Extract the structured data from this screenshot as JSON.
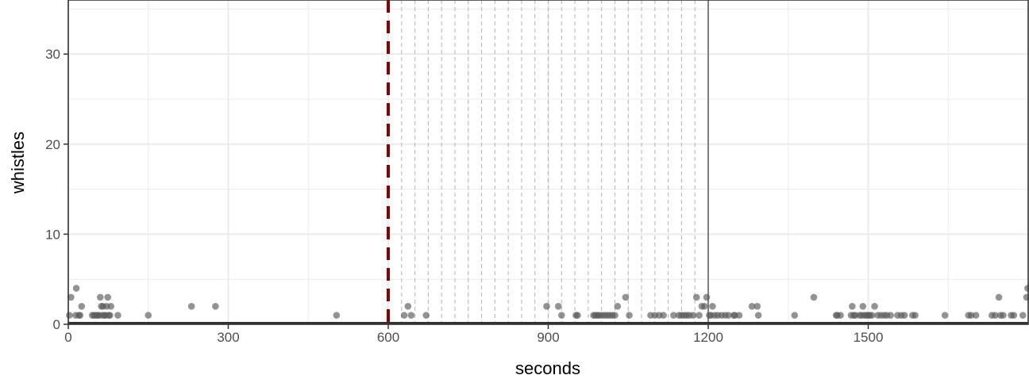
{
  "chart_data": {
    "type": "scatter",
    "xlabel": "seconds",
    "ylabel": "whistles",
    "xlim": [
      0,
      1800
    ],
    "ylim": [
      0,
      36
    ],
    "x_ticks": [
      0,
      300,
      600,
      900,
      1200,
      1500
    ],
    "x_tick_labels": [
      "0",
      "300",
      "600",
      "900",
      "1200",
      "1500"
    ],
    "y_ticks": [
      0,
      10,
      20,
      30
    ],
    "y_tick_labels": [
      "0",
      "10",
      "20",
      "30"
    ],
    "grid": true,
    "legend": "none",
    "reference_lines": {
      "dashed_red_x": 600,
      "solid_gray_x": 1200,
      "dashed_gray_x": [
        625,
        650,
        675,
        700,
        725,
        750,
        775,
        800,
        825,
        850,
        875,
        900,
        925,
        950,
        975,
        1000,
        1025,
        1050,
        1075,
        1100,
        1125,
        1150,
        1175
      ]
    },
    "colors": {
      "points": "#595959",
      "dashed_red_line": "#8b0000",
      "solid_line": "#7f7f7f",
      "dashed_lines": "#b3b3b3",
      "grid": "#ebebeb",
      "panel_border": "#333333"
    },
    "points": [
      [
        2,
        1
      ],
      [
        5,
        3
      ],
      [
        14,
        1
      ],
      [
        15,
        4
      ],
      [
        20,
        1
      ],
      [
        22,
        1
      ],
      [
        25,
        2
      ],
      [
        45,
        1
      ],
      [
        48,
        1
      ],
      [
        52,
        1
      ],
      [
        55,
        1
      ],
      [
        58,
        1
      ],
      [
        60,
        3
      ],
      [
        62,
        2
      ],
      [
        64,
        1
      ],
      [
        65,
        2
      ],
      [
        68,
        1
      ],
      [
        70,
        1
      ],
      [
        72,
        2
      ],
      [
        74,
        3
      ],
      [
        76,
        1
      ],
      [
        78,
        1
      ],
      [
        80,
        2
      ],
      [
        93,
        1
      ],
      [
        150,
        1
      ],
      [
        231,
        2
      ],
      [
        276,
        2
      ],
      [
        503,
        1
      ],
      [
        630,
        1
      ],
      [
        637,
        2
      ],
      [
        643,
        1
      ],
      [
        671,
        1
      ],
      [
        897,
        2
      ],
      [
        919,
        2
      ],
      [
        925,
        1
      ],
      [
        952,
        1
      ],
      [
        955,
        1
      ],
      [
        985,
        1
      ],
      [
        988,
        1
      ],
      [
        992,
        1
      ],
      [
        995,
        1
      ],
      [
        1000,
        1
      ],
      [
        1005,
        1
      ],
      [
        1010,
        1
      ],
      [
        1015,
        1
      ],
      [
        1020,
        1
      ],
      [
        1025,
        1
      ],
      [
        1030,
        2
      ],
      [
        1045,
        3
      ],
      [
        1052,
        1
      ],
      [
        1092,
        1
      ],
      [
        1100,
        1
      ],
      [
        1108,
        1
      ],
      [
        1116,
        1
      ],
      [
        1135,
        1
      ],
      [
        1145,
        1
      ],
      [
        1150,
        1
      ],
      [
        1155,
        1
      ],
      [
        1160,
        1
      ],
      [
        1165,
        1
      ],
      [
        1172,
        1
      ],
      [
        1178,
        3
      ],
      [
        1183,
        1
      ],
      [
        1188,
        2
      ],
      [
        1193,
        2
      ],
      [
        1197,
        3
      ],
      [
        1202,
        1
      ],
      [
        1205,
        1
      ],
      [
        1208,
        2
      ],
      [
        1212,
        1
      ],
      [
        1218,
        1
      ],
      [
        1225,
        1
      ],
      [
        1232,
        1
      ],
      [
        1238,
        1
      ],
      [
        1248,
        1
      ],
      [
        1250,
        1
      ],
      [
        1258,
        1
      ],
      [
        1282,
        2
      ],
      [
        1292,
        2
      ],
      [
        1294,
        1
      ],
      [
        1362,
        1
      ],
      [
        1398,
        3
      ],
      [
        1440,
        1
      ],
      [
        1442,
        1
      ],
      [
        1448,
        1
      ],
      [
        1468,
        1
      ],
      [
        1470,
        2
      ],
      [
        1473,
        1
      ],
      [
        1476,
        1
      ],
      [
        1484,
        1
      ],
      [
        1488,
        1
      ],
      [
        1490,
        2
      ],
      [
        1493,
        1
      ],
      [
        1497,
        1
      ],
      [
        1500,
        1
      ],
      [
        1503,
        1
      ],
      [
        1507,
        1
      ],
      [
        1512,
        2
      ],
      [
        1518,
        1
      ],
      [
        1524,
        1
      ],
      [
        1530,
        1
      ],
      [
        1535,
        1
      ],
      [
        1542,
        1
      ],
      [
        1555,
        1
      ],
      [
        1562,
        1
      ],
      [
        1568,
        1
      ],
      [
        1583,
        1
      ],
      [
        1588,
        1
      ],
      [
        1644,
        1
      ],
      [
        1688,
        1
      ],
      [
        1693,
        1
      ],
      [
        1702,
        1
      ],
      [
        1732,
        1
      ],
      [
        1738,
        1
      ],
      [
        1745,
        3
      ],
      [
        1748,
        1
      ],
      [
        1753,
        1
      ],
      [
        1768,
        1
      ],
      [
        1773,
        1
      ],
      [
        1790,
        1
      ],
      [
        1797,
        3
      ],
      [
        1799,
        4
      ]
    ]
  }
}
